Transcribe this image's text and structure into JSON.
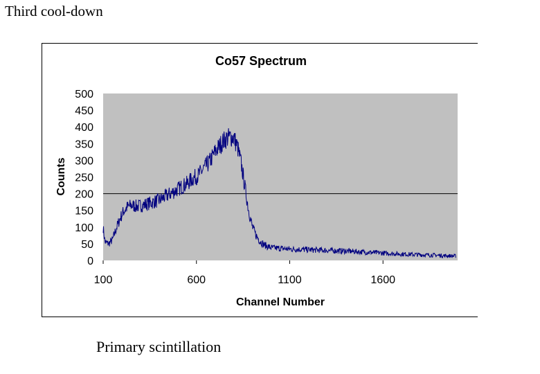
{
  "slide": {
    "title": "Third cool-down",
    "caption": "Primary scintillation"
  },
  "colors": {
    "series": "#00007f",
    "plot_background": "#c0c0c0",
    "gridline": "#000000"
  },
  "chart_data": {
    "type": "line",
    "title": "Co57 Spectrum",
    "xlabel": "Channel Number",
    "ylabel": "Counts",
    "xlim": [
      100,
      2000
    ],
    "ylim": [
      0,
      500
    ],
    "x_ticks": [
      100,
      600,
      1100,
      1600
    ],
    "x_tick_labels": [
      "100",
      "600",
      "1100",
      "1600"
    ],
    "y_ticks": [
      0,
      50,
      100,
      150,
      200,
      250,
      300,
      350,
      400,
      450,
      500
    ],
    "y_tick_labels": [
      "0",
      "50",
      "100",
      "150",
      "200",
      "250",
      "300",
      "350",
      "400",
      "450",
      "500"
    ],
    "grid": {
      "horizontal_lines_at": [
        200
      ]
    },
    "legend": "none",
    "series": [
      {
        "x": [
          100,
          110,
          130,
          150,
          170,
          190,
          210,
          230,
          250,
          280,
          310,
          340,
          370,
          400,
          430,
          460,
          490,
          520,
          550,
          580,
          610,
          640,
          670,
          700,
          720,
          740,
          760,
          780,
          800,
          820,
          840,
          860,
          880,
          900,
          920,
          940,
          960,
          980,
          1000,
          1050,
          1100,
          1150,
          1200,
          1300,
          1400,
          1500,
          1600,
          1700,
          1800,
          1900,
          1990
        ],
        "y": [
          98,
          55,
          50,
          62,
          95,
          125,
          148,
          160,
          165,
          162,
          165,
          170,
          175,
          180,
          190,
          200,
          210,
          220,
          230,
          245,
          255,
          275,
          295,
          325,
          340,
          355,
          365,
          370,
          368,
          340,
          290,
          220,
          150,
          100,
          75,
          58,
          48,
          42,
          38,
          36,
          34,
          33,
          32,
          30,
          28,
          25,
          22,
          19,
          17,
          15,
          13
        ]
      }
    ]
  }
}
